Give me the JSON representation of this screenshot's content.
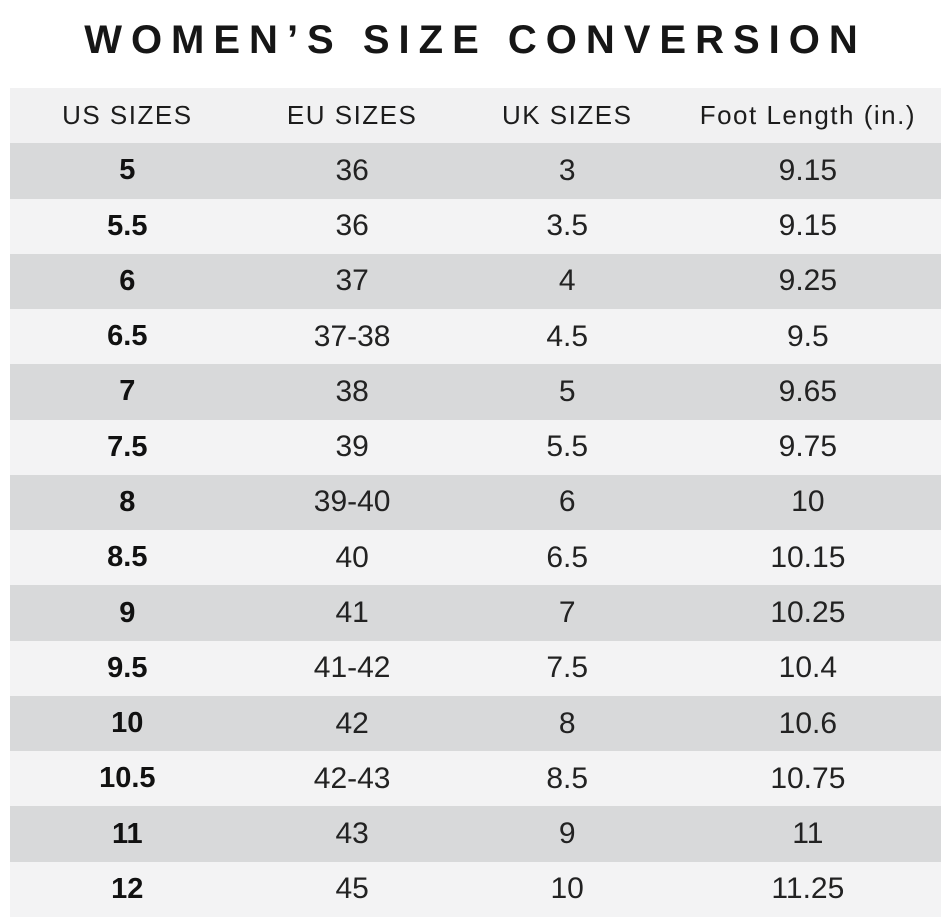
{
  "colors": {
    "page_bg": "#ffffff",
    "header_bg": "#f1f1f2",
    "row_dark": "#d8d9da",
    "row_light": "#f3f3f4",
    "text": "#1c1c1c"
  },
  "chart_data": {
    "type": "table",
    "title": "WOMEN’S SIZE CONVERSION",
    "columns": [
      "US SIZES",
      "EU SIZES",
      "UK SIZES",
      "Foot Length (in.)"
    ],
    "rows": [
      [
        "5",
        "36",
        "3",
        "9.15"
      ],
      [
        "5.5",
        "36",
        "3.5",
        "9.15"
      ],
      [
        "6",
        "37",
        "4",
        "9.25"
      ],
      [
        "6.5",
        "37-38",
        "4.5",
        "9.5"
      ],
      [
        "7",
        "38",
        "5",
        "9.65"
      ],
      [
        "7.5",
        "39",
        "5.5",
        "9.75"
      ],
      [
        "8",
        "39-40",
        "6",
        "10"
      ],
      [
        "8.5",
        "40",
        "6.5",
        "10.15"
      ],
      [
        "9",
        "41",
        "7",
        "10.25"
      ],
      [
        "9.5",
        "41-42",
        "7.5",
        "10.4"
      ],
      [
        "10",
        "42",
        "8",
        "10.6"
      ],
      [
        "10.5",
        "42-43",
        "8.5",
        "10.75"
      ],
      [
        "11",
        "43",
        "9",
        "11"
      ],
      [
        "12",
        "45",
        "10",
        "11.25"
      ]
    ]
  }
}
